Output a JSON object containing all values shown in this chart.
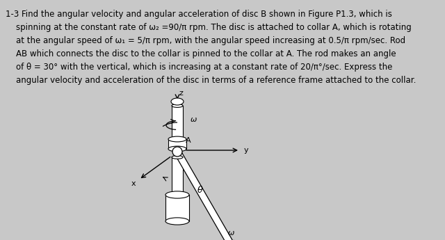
{
  "line1": "1-3 Find the angular velocity and angular acceleration of disc B shown in Figure P1.3, which is",
  "line2": "    spinning at the constant rate of ω₂ =90/π rpm. The disc is attached to collar A, which is rotating",
  "line3": "    at the angular speed of ω₁ = 5/π rpm, with the angular speed increasing at 0.5/π rpm/sec. Rod",
  "line4": "    AB which connects the disc to the collar is pinned to the collar at A. The rod makes an angle",
  "line5": "    of θ = 30° with the vertical, which is increasing at a constant rate of 20/π°/sec. Express the",
  "line6": "    angular velocity and acceleration of the disc in terms of a reference frame attached to the collar.",
  "bg_color": "#c8c8c8",
  "text_color": "#000000",
  "fontsize": 8.5
}
